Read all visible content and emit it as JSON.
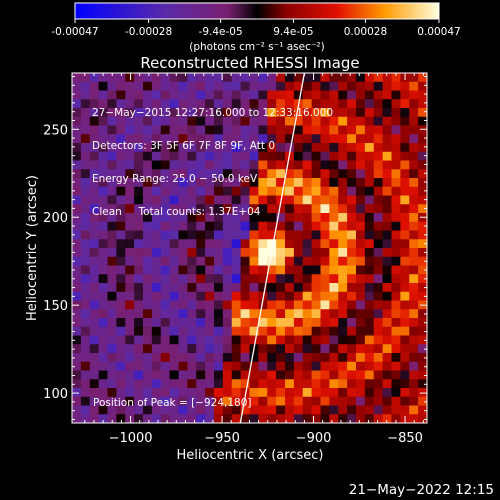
{
  "colorbar": {
    "ticks": [
      "-0.00047",
      "-0.00028",
      "-9.4e-05",
      "9.4e-05",
      "0.00028",
      "0.00047"
    ],
    "tick_values": [
      -0.00047,
      -0.00028,
      -9.4e-05,
      9.4e-05,
      0.00028,
      0.00047
    ],
    "range": [
      -0.00047,
      0.00047
    ],
    "unit_label": "(photons cm⁻² s⁻¹ asec⁻²)"
  },
  "chart_data": {
    "type": "heatmap",
    "title": "Reconstructed RHESSI Image",
    "xlabel": "Heliocentric X (arcsec)",
    "ylabel": "Heliocentric Y (arcsec)",
    "xlim": [
      -1032,
      -838
    ],
    "ylim": [
      83,
      282
    ],
    "xticks": [
      -1000,
      -950,
      -900,
      -850
    ],
    "yticks": [
      100,
      150,
      200,
      250
    ],
    "xtick_labels": [
      "−1000",
      "−950",
      "−900",
      "−850"
    ],
    "ytick_labels": [
      "100",
      "150",
      "200",
      "250"
    ],
    "limb_points": [
      [
        -940,
        83
      ],
      [
        -905,
        282
      ]
    ],
    "peak": [
      -924,
      180
    ],
    "info_lines": [
      "27−May−2015 12:27:16.000 to 12:33:16.000",
      "Detectors: 3F 5F 6F 7F 8F 9F, Att 0",
      "Energy Range: 25.0 − 50.0 keV",
      "Clean     Total counts: 1.37E+04"
    ],
    "peak_label": "Position of Peak = [−924,180]"
  },
  "footer": {
    "date": "21−May−2022 12:15"
  }
}
